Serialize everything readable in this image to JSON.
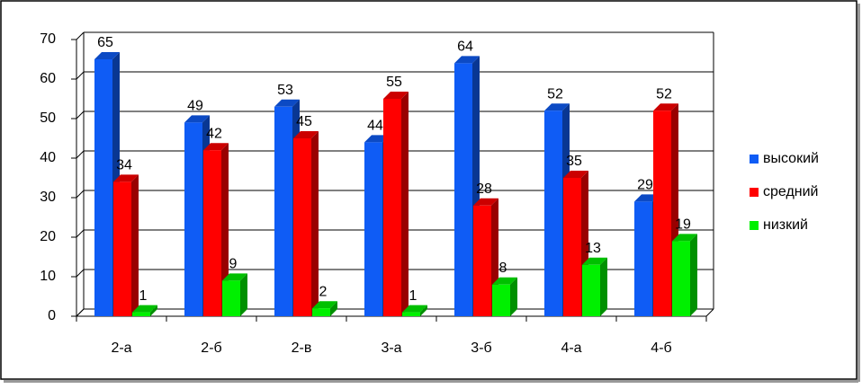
{
  "chart_data": {
    "type": "bar",
    "categories": [
      "2-а",
      "2-б",
      "2-в",
      "3-а",
      "3-б",
      "4-а",
      "4-б"
    ],
    "series": [
      {
        "name": "высокий",
        "color": "#0f5cf5",
        "values": [
          65,
          49,
          53,
          44,
          64,
          52,
          29
        ]
      },
      {
        "name": "средний",
        "color": "#ff0000",
        "values": [
          34,
          42,
          45,
          55,
          28,
          35,
          52
        ]
      },
      {
        "name": "низкий",
        "color": "#00f000",
        "values": [
          1,
          9,
          2,
          1,
          8,
          13,
          19
        ]
      }
    ],
    "ylim": [
      0,
      70
    ],
    "yticks": [
      0,
      10,
      20,
      30,
      40,
      50,
      60,
      70
    ],
    "grid": true,
    "legend": "right"
  }
}
